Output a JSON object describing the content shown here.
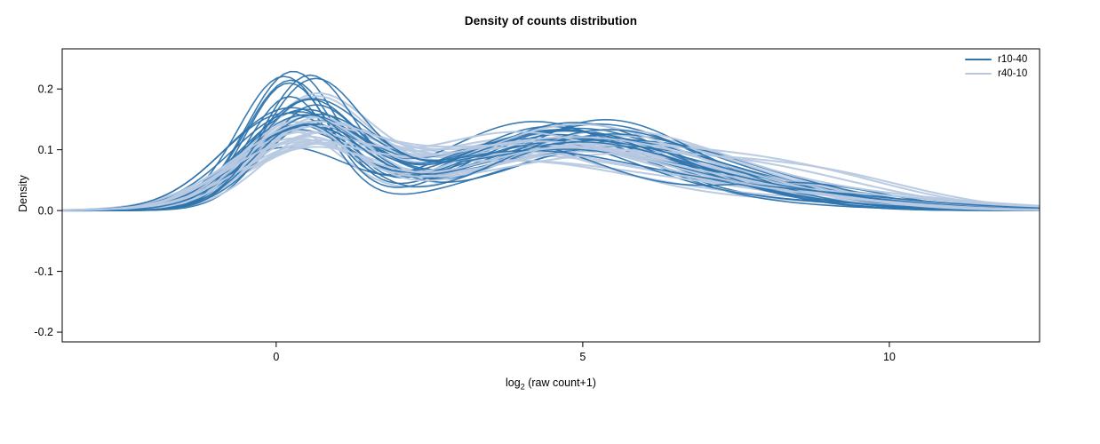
{
  "chart_data": {
    "type": "line",
    "title": "Density of counts distribution",
    "ylabel": "Density",
    "xlabel_parts": {
      "base": "log",
      "sub": "2",
      "rest": " (raw count+1)"
    },
    "x_domain": [
      -3.49,
      12.45
    ],
    "y_domain": [
      -0.216,
      0.266
    ],
    "x_ticks": [
      {
        "v": 0,
        "label": "0"
      },
      {
        "v": 5,
        "label": "5"
      },
      {
        "v": 10,
        "label": "10"
      }
    ],
    "y_ticks": [
      {
        "v": -0.2,
        "label": "-0.2"
      },
      {
        "v": -0.1,
        "label": "-0.1"
      },
      {
        "v": 0.0,
        "label": "0.0"
      },
      {
        "v": 0.1,
        "label": "0.1"
      },
      {
        "v": 0.2,
        "label": "0.2"
      }
    ],
    "grid": false,
    "legend_position": "top-right",
    "curve_shape_note": "Each series is a density curve with a sharp peak near x=0.4 (height 0.10-0.23), a dip near x=2, a broad bump over x=3-6.5 (height 0.10-0.15), and a small right tail fading to 0 by x=12.5",
    "groups": [
      {
        "name": "r10-40",
        "color": "#2e74ad",
        "line_width": 1.6,
        "count": 24,
        "seed": 7,
        "peak1": {
          "w": [
            0.26,
            0.44
          ],
          "mu": [
            0.1,
            0.6
          ],
          "s": [
            0.68,
            1.05
          ]
        },
        "peak2": {
          "w": [
            0.4,
            0.58
          ],
          "mu": [
            3.8,
            5.6
          ],
          "s": [
            1.5,
            2.1
          ]
        },
        "peak3": {
          "w": [
            0.05,
            0.18
          ],
          "mu": [
            6.0,
            8.5
          ],
          "s": [
            1.4,
            2.4
          ]
        }
      },
      {
        "name": "r40-10",
        "color": "#b7c9e2",
        "line_width": 2.1,
        "count": 24,
        "seed": 13,
        "peak1": {
          "w": [
            0.24,
            0.36
          ],
          "mu": [
            0.2,
            0.7
          ],
          "s": [
            0.85,
            1.2
          ]
        },
        "peak2": {
          "w": [
            0.42,
            0.58
          ],
          "mu": [
            3.6,
            5.4
          ],
          "s": [
            1.7,
            2.3
          ]
        },
        "peak3": {
          "w": [
            0.08,
            0.22
          ],
          "mu": [
            6.5,
            9.2
          ],
          "s": [
            1.6,
            2.6
          ]
        }
      }
    ]
  }
}
